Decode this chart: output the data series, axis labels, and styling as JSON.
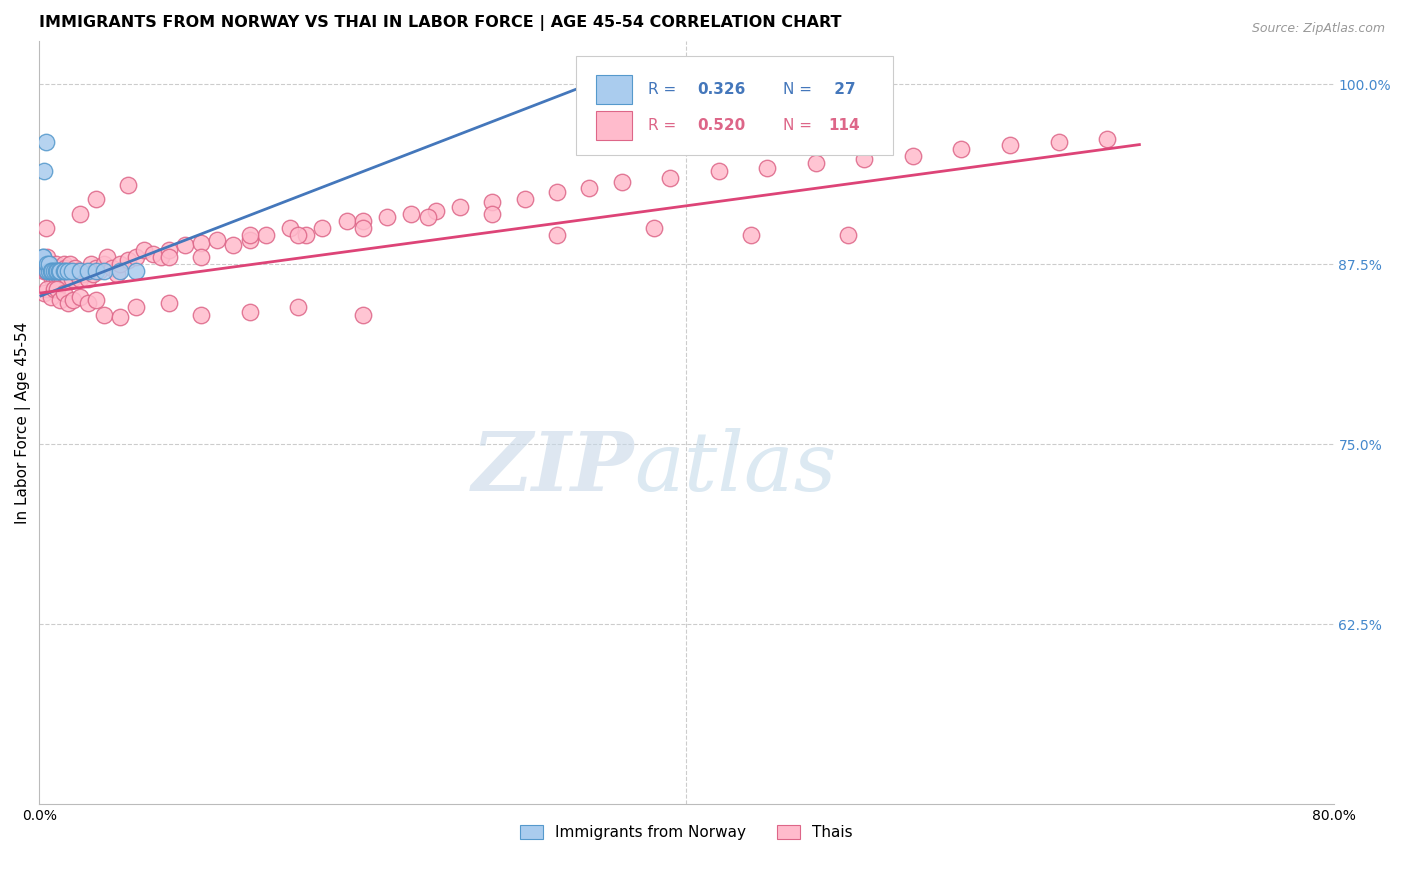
{
  "title": "IMMIGRANTS FROM NORWAY VS THAI IN LABOR FORCE | AGE 45-54 CORRELATION CHART",
  "source": "Source: ZipAtlas.com",
  "ylabel": "In Labor Force | Age 45-54",
  "xlim": [
    0.0,
    0.8
  ],
  "ylim": [
    0.5,
    1.03
  ],
  "xticks": [
    0.0,
    0.1,
    0.2,
    0.3,
    0.4,
    0.5,
    0.6,
    0.7,
    0.8
  ],
  "xticklabels": [
    "0.0%",
    "",
    "",
    "",
    "",
    "",
    "",
    "",
    "80.0%"
  ],
  "yticks_right": [
    0.625,
    0.75,
    0.875,
    1.0
  ],
  "ytick_right_labels": [
    "62.5%",
    "75.0%",
    "87.5%",
    "100.0%"
  ],
  "norway_color": "#aaccee",
  "norway_edge_color": "#5599cc",
  "thai_color": "#ffbbcc",
  "thai_edge_color": "#dd6688",
  "norway_line_color": "#4477bb",
  "thai_line_color": "#dd4477",
  "norway_scatter_x": [
    0.002,
    0.002,
    0.003,
    0.004,
    0.005,
    0.005,
    0.006,
    0.006,
    0.007,
    0.008,
    0.009,
    0.01,
    0.011,
    0.012,
    0.013,
    0.015,
    0.016,
    0.018,
    0.02,
    0.025,
    0.03,
    0.035,
    0.04,
    0.05,
    0.06,
    0.34,
    0.34
  ],
  "norway_scatter_y": [
    0.88,
    0.88,
    0.94,
    0.96,
    0.87,
    0.875,
    0.87,
    0.875,
    0.87,
    0.87,
    0.87,
    0.87,
    0.87,
    0.87,
    0.87,
    0.87,
    0.87,
    0.87,
    0.87,
    0.87,
    0.87,
    0.87,
    0.87,
    0.87,
    0.87,
    1.0,
    1.0
  ],
  "thai_scatter_x": [
    0.003,
    0.004,
    0.004,
    0.005,
    0.005,
    0.005,
    0.006,
    0.006,
    0.007,
    0.007,
    0.008,
    0.008,
    0.009,
    0.009,
    0.01,
    0.01,
    0.011,
    0.011,
    0.012,
    0.012,
    0.013,
    0.014,
    0.015,
    0.015,
    0.016,
    0.017,
    0.018,
    0.019,
    0.02,
    0.021,
    0.022,
    0.023,
    0.024,
    0.025,
    0.027,
    0.028,
    0.03,
    0.032,
    0.033,
    0.035,
    0.037,
    0.04,
    0.042,
    0.045,
    0.048,
    0.05,
    0.055,
    0.06,
    0.065,
    0.07,
    0.075,
    0.08,
    0.09,
    0.1,
    0.11,
    0.12,
    0.13,
    0.14,
    0.155,
    0.165,
    0.175,
    0.19,
    0.2,
    0.215,
    0.23,
    0.245,
    0.26,
    0.28,
    0.3,
    0.32,
    0.34,
    0.36,
    0.39,
    0.42,
    0.45,
    0.48,
    0.51,
    0.54,
    0.57,
    0.6,
    0.63,
    0.66,
    0.003,
    0.005,
    0.007,
    0.009,
    0.011,
    0.013,
    0.015,
    0.018,
    0.021,
    0.025,
    0.03,
    0.035,
    0.04,
    0.05,
    0.06,
    0.08,
    0.1,
    0.13,
    0.16,
    0.2,
    0.025,
    0.035,
    0.055,
    0.08,
    0.1,
    0.13,
    0.16,
    0.2,
    0.24,
    0.28,
    0.32,
    0.38,
    0.44,
    0.5
  ],
  "thai_scatter_y": [
    0.87,
    0.87,
    0.9,
    0.87,
    0.875,
    0.88,
    0.87,
    0.875,
    0.868,
    0.872,
    0.865,
    0.87,
    0.865,
    0.872,
    0.87,
    0.875,
    0.865,
    0.868,
    0.87,
    0.872,
    0.87,
    0.865,
    0.875,
    0.868,
    0.872,
    0.87,
    0.865,
    0.875,
    0.865,
    0.87,
    0.872,
    0.868,
    0.87,
    0.865,
    0.868,
    0.87,
    0.865,
    0.875,
    0.868,
    0.872,
    0.87,
    0.875,
    0.88,
    0.872,
    0.868,
    0.875,
    0.878,
    0.88,
    0.885,
    0.882,
    0.88,
    0.885,
    0.888,
    0.89,
    0.892,
    0.888,
    0.892,
    0.895,
    0.9,
    0.895,
    0.9,
    0.905,
    0.905,
    0.908,
    0.91,
    0.912,
    0.915,
    0.918,
    0.92,
    0.925,
    0.928,
    0.932,
    0.935,
    0.94,
    0.942,
    0.945,
    0.948,
    0.95,
    0.955,
    0.958,
    0.96,
    0.962,
    0.855,
    0.858,
    0.852,
    0.858,
    0.858,
    0.85,
    0.855,
    0.848,
    0.85,
    0.852,
    0.848,
    0.85,
    0.84,
    0.838,
    0.845,
    0.848,
    0.84,
    0.842,
    0.845,
    0.84,
    0.91,
    0.92,
    0.93,
    0.88,
    0.88,
    0.895,
    0.895,
    0.9,
    0.908,
    0.91,
    0.895,
    0.9,
    0.895,
    0.895
  ],
  "norway_line_x": [
    0.001,
    0.34
  ],
  "norway_line_y": [
    0.853,
    1.0
  ],
  "thai_line_x": [
    0.001,
    0.68
  ],
  "thai_line_y": [
    0.855,
    0.958
  ],
  "watermark_zip": "ZIP",
  "watermark_atlas": "atlas",
  "background_color": "#ffffff",
  "grid_color": "#cccccc",
  "title_fontsize": 11.5,
  "axis_label_fontsize": 11,
  "tick_fontsize": 10,
  "right_tick_color": "#4488cc",
  "legend_norway_label": "Immigrants from Norway",
  "legend_thai_label": "Thais"
}
